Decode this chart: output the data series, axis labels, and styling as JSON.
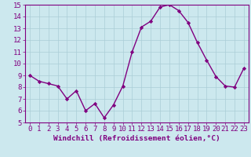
{
  "x": [
    0,
    1,
    2,
    3,
    4,
    5,
    6,
    7,
    8,
    9,
    10,
    11,
    12,
    13,
    14,
    15,
    16,
    17,
    18,
    19,
    20,
    21,
    22,
    23
  ],
  "y": [
    9.0,
    8.5,
    8.3,
    8.1,
    7.0,
    7.7,
    6.0,
    6.6,
    5.4,
    6.5,
    8.1,
    11.0,
    13.1,
    13.6,
    14.8,
    15.0,
    14.5,
    13.5,
    11.8,
    10.3,
    8.9,
    8.1,
    8.0,
    9.6
  ],
  "line_color": "#800080",
  "marker": "D",
  "marker_size": 2.2,
  "bg_color": "#cce8ee",
  "grid_color": "#aacdd6",
  "xlabel": "Windchill (Refroidissement éolien,°C)",
  "ylim": [
    5,
    15
  ],
  "xlim_min": -0.5,
  "xlim_max": 23.5,
  "yticks": [
    5,
    6,
    7,
    8,
    9,
    10,
    11,
    12,
    13,
    14,
    15
  ],
  "xticks": [
    0,
    1,
    2,
    3,
    4,
    5,
    6,
    7,
    8,
    9,
    10,
    11,
    12,
    13,
    14,
    15,
    16,
    17,
    18,
    19,
    20,
    21,
    22,
    23
  ],
  "tick_color": "#800080",
  "label_color": "#800080",
  "font_size": 6.5,
  "xlabel_fontsize": 6.8,
  "linewidth": 1.0
}
